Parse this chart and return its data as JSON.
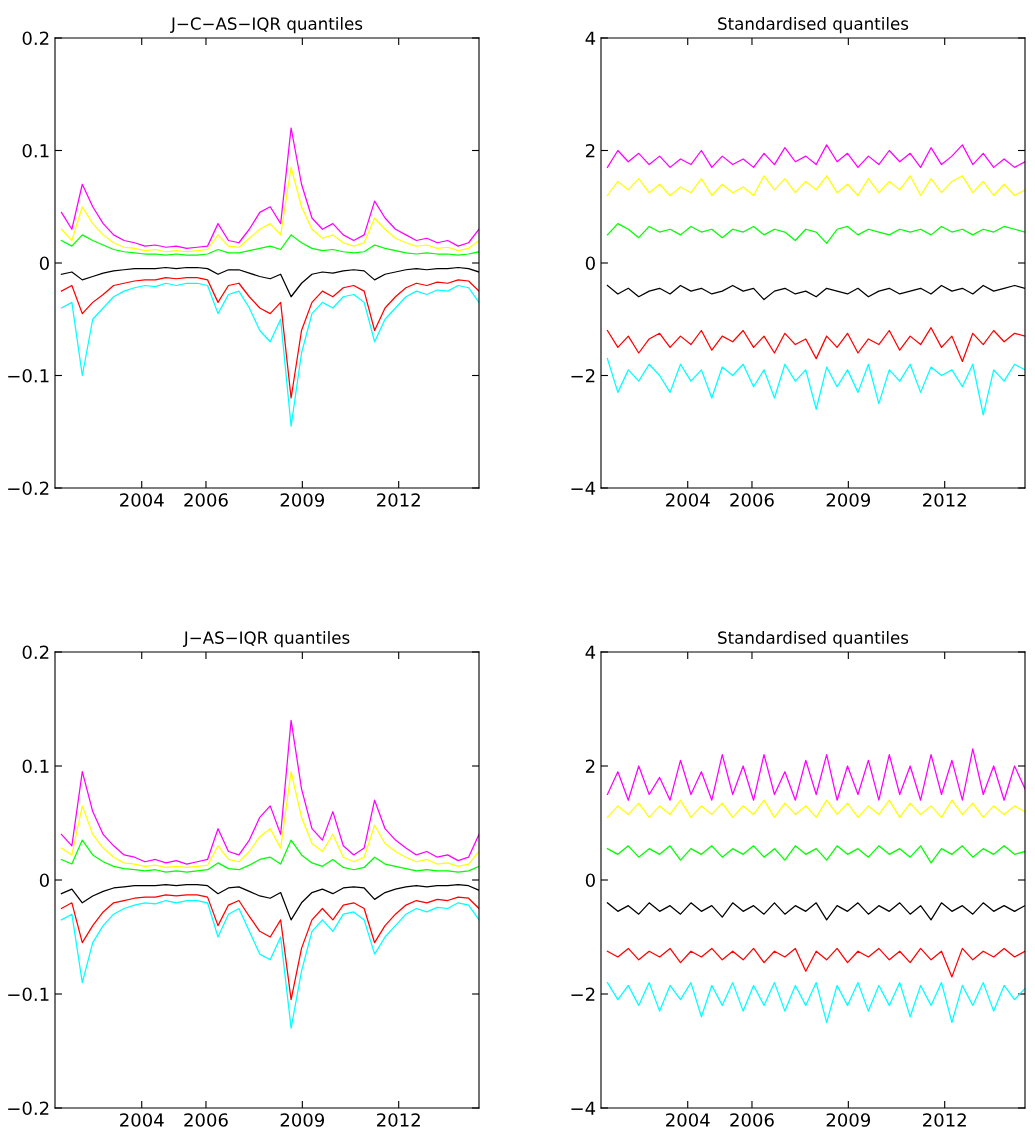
{
  "chart_data": [
    {
      "type": "line",
      "title": "J−C−AS−IQR quantiles",
      "x": [
        2001.5,
        2001.825,
        2002.15,
        2002.475,
        2002.8,
        2003.125,
        2003.45,
        2003.775,
        2004.1,
        2004.425,
        2004.75,
        2005.075,
        2005.4,
        2005.725,
        2006.05,
        2006.375,
        2006.7,
        2007.025,
        2007.35,
        2007.675,
        2008.0,
        2008.325,
        2008.65,
        2008.975,
        2009.3,
        2009.625,
        2009.95,
        2010.275,
        2010.6,
        2010.925,
        2011.25,
        2011.575,
        2011.9,
        2012.225,
        2012.55,
        2012.875,
        2013.2,
        2013.525,
        2013.85,
        2014.175,
        2014.5
      ],
      "xlim": [
        2001.3,
        2014.5
      ],
      "xticks": [
        2004,
        2006,
        2009,
        2012
      ],
      "ylim": [
        -0.2,
        0.2
      ],
      "yticks": [
        {
          "value": -0.2,
          "label": "−0.2"
        },
        {
          "value": -0.1,
          "label": "−0.1"
        },
        0,
        0.1,
        0.2
      ],
      "grid": false,
      "legend": false,
      "series": [
        {
          "color": "#ff00ff",
          "values": [
            0.045,
            0.03,
            0.07,
            0.05,
            0.035,
            0.025,
            0.02,
            0.018,
            0.015,
            0.016,
            0.014,
            0.015,
            0.013,
            0.014,
            0.015,
            0.035,
            0.02,
            0.018,
            0.03,
            0.045,
            0.05,
            0.035,
            0.12,
            0.07,
            0.04,
            0.03,
            0.035,
            0.025,
            0.02,
            0.025,
            0.055,
            0.04,
            0.03,
            0.025,
            0.02,
            0.022,
            0.018,
            0.02,
            0.015,
            0.018,
            0.03
          ]
        },
        {
          "color": "#ffff00",
          "values": [
            0.03,
            0.02,
            0.05,
            0.035,
            0.025,
            0.018,
            0.014,
            0.013,
            0.011,
            0.012,
            0.01,
            0.011,
            0.01,
            0.011,
            0.012,
            0.025,
            0.015,
            0.014,
            0.022,
            0.03,
            0.035,
            0.025,
            0.085,
            0.05,
            0.03,
            0.022,
            0.025,
            0.018,
            0.015,
            0.018,
            0.04,
            0.03,
            0.022,
            0.018,
            0.015,
            0.016,
            0.013,
            0.014,
            0.011,
            0.013,
            0.02
          ]
        },
        {
          "color": "#00ff00",
          "values": [
            0.02,
            0.015,
            0.025,
            0.02,
            0.016,
            0.012,
            0.01,
            0.009,
            0.008,
            0.008,
            0.007,
            0.008,
            0.007,
            0.007,
            0.008,
            0.012,
            0.009,
            0.009,
            0.011,
            0.013,
            0.015,
            0.012,
            0.025,
            0.018,
            0.013,
            0.011,
            0.012,
            0.01,
            0.009,
            0.01,
            0.016,
            0.013,
            0.011,
            0.009,
            0.008,
            0.009,
            0.008,
            0.008,
            0.007,
            0.008,
            0.01
          ]
        },
        {
          "color": "#000000",
          "values": [
            -0.01,
            -0.008,
            -0.015,
            -0.012,
            -0.009,
            -0.007,
            -0.006,
            -0.005,
            -0.005,
            -0.005,
            -0.004,
            -0.005,
            -0.004,
            -0.004,
            -0.005,
            -0.01,
            -0.006,
            -0.006,
            -0.009,
            -0.012,
            -0.014,
            -0.01,
            -0.03,
            -0.018,
            -0.01,
            -0.008,
            -0.009,
            -0.007,
            -0.006,
            -0.007,
            -0.015,
            -0.01,
            -0.008,
            -0.006,
            -0.005,
            -0.006,
            -0.005,
            -0.005,
            -0.004,
            -0.005,
            -0.008
          ]
        },
        {
          "color": "#ff0000",
          "values": [
            -0.025,
            -0.02,
            -0.045,
            -0.035,
            -0.028,
            -0.02,
            -0.018,
            -0.016,
            -0.015,
            -0.015,
            -0.013,
            -0.014,
            -0.013,
            -0.013,
            -0.015,
            -0.035,
            -0.02,
            -0.018,
            -0.03,
            -0.04,
            -0.045,
            -0.035,
            -0.12,
            -0.06,
            -0.035,
            -0.025,
            -0.03,
            -0.022,
            -0.02,
            -0.025,
            -0.06,
            -0.04,
            -0.03,
            -0.022,
            -0.018,
            -0.02,
            -0.017,
            -0.018,
            -0.015,
            -0.016,
            -0.025
          ]
        },
        {
          "color": "#00ffff",
          "values": [
            -0.04,
            -0.035,
            -0.1,
            -0.05,
            -0.04,
            -0.03,
            -0.025,
            -0.022,
            -0.02,
            -0.021,
            -0.018,
            -0.02,
            -0.018,
            -0.018,
            -0.02,
            -0.045,
            -0.028,
            -0.025,
            -0.04,
            -0.06,
            -0.07,
            -0.05,
            -0.145,
            -0.08,
            -0.045,
            -0.035,
            -0.04,
            -0.03,
            -0.028,
            -0.035,
            -0.07,
            -0.05,
            -0.04,
            -0.03,
            -0.025,
            -0.028,
            -0.024,
            -0.025,
            -0.02,
            -0.022,
            -0.035
          ]
        }
      ]
    },
    {
      "type": "line",
      "title": "Standardised quantiles",
      "x": [
        2001.5,
        2001.825,
        2002.15,
        2002.475,
        2002.8,
        2003.125,
        2003.45,
        2003.775,
        2004.1,
        2004.425,
        2004.75,
        2005.075,
        2005.4,
        2005.725,
        2006.05,
        2006.375,
        2006.7,
        2007.025,
        2007.35,
        2007.675,
        2008.0,
        2008.325,
        2008.65,
        2008.975,
        2009.3,
        2009.625,
        2009.95,
        2010.275,
        2010.6,
        2010.925,
        2011.25,
        2011.575,
        2011.9,
        2012.225,
        2012.55,
        2012.875,
        2013.2,
        2013.525,
        2013.85,
        2014.175,
        2014.5
      ],
      "xlim": [
        2001.3,
        2014.5
      ],
      "xticks": [
        2004,
        2006,
        2009,
        2012
      ],
      "ylim": [
        -4,
        4
      ],
      "yticks": [
        {
          "value": -4,
          "label": "−4"
        },
        {
          "value": -2,
          "label": "−2"
        },
        0,
        2,
        4
      ],
      "grid": false,
      "legend": false,
      "series": [
        {
          "color": "#ff00ff",
          "values": [
            1.7,
            2.0,
            1.8,
            1.95,
            1.75,
            1.9,
            1.7,
            1.85,
            1.75,
            2.0,
            1.7,
            1.9,
            1.75,
            1.85,
            1.7,
            1.95,
            1.75,
            2.05,
            1.8,
            1.9,
            1.75,
            2.1,
            1.8,
            1.95,
            1.7,
            1.9,
            1.75,
            2.0,
            1.8,
            1.95,
            1.7,
            2.05,
            1.75,
            1.9,
            2.1,
            1.75,
            1.95,
            1.7,
            1.85,
            1.7,
            1.8
          ]
        },
        {
          "color": "#ffff00",
          "values": [
            1.2,
            1.45,
            1.3,
            1.5,
            1.25,
            1.4,
            1.2,
            1.35,
            1.25,
            1.5,
            1.2,
            1.4,
            1.25,
            1.35,
            1.2,
            1.55,
            1.3,
            1.5,
            1.25,
            1.45,
            1.3,
            1.55,
            1.25,
            1.4,
            1.2,
            1.5,
            1.25,
            1.45,
            1.3,
            1.55,
            1.2,
            1.5,
            1.25,
            1.45,
            1.55,
            1.25,
            1.45,
            1.2,
            1.4,
            1.2,
            1.3
          ]
        },
        {
          "color": "#00ff00",
          "values": [
            0.5,
            0.7,
            0.6,
            0.45,
            0.65,
            0.55,
            0.6,
            0.5,
            0.65,
            0.55,
            0.6,
            0.45,
            0.6,
            0.55,
            0.65,
            0.5,
            0.6,
            0.55,
            0.4,
            0.6,
            0.55,
            0.35,
            0.6,
            0.65,
            0.5,
            0.6,
            0.55,
            0.5,
            0.6,
            0.55,
            0.6,
            0.5,
            0.65,
            0.55,
            0.6,
            0.5,
            0.6,
            0.55,
            0.65,
            0.6,
            0.55
          ]
        },
        {
          "color": "#000000",
          "values": [
            -0.4,
            -0.55,
            -0.45,
            -0.6,
            -0.5,
            -0.45,
            -0.55,
            -0.4,
            -0.5,
            -0.45,
            -0.55,
            -0.5,
            -0.4,
            -0.5,
            -0.45,
            -0.65,
            -0.5,
            -0.45,
            -0.55,
            -0.5,
            -0.6,
            -0.45,
            -0.5,
            -0.55,
            -0.45,
            -0.6,
            -0.5,
            -0.45,
            -0.55,
            -0.5,
            -0.45,
            -0.55,
            -0.4,
            -0.5,
            -0.45,
            -0.55,
            -0.4,
            -0.5,
            -0.45,
            -0.4,
            -0.45
          ]
        },
        {
          "color": "#ff0000",
          "values": [
            -1.2,
            -1.5,
            -1.3,
            -1.6,
            -1.35,
            -1.25,
            -1.5,
            -1.3,
            -1.45,
            -1.2,
            -1.55,
            -1.3,
            -1.4,
            -1.2,
            -1.5,
            -1.3,
            -1.6,
            -1.25,
            -1.45,
            -1.35,
            -1.7,
            -1.3,
            -1.5,
            -1.25,
            -1.6,
            -1.35,
            -1.45,
            -1.2,
            -1.55,
            -1.3,
            -1.45,
            -1.15,
            -1.5,
            -1.3,
            -1.75,
            -1.25,
            -1.45,
            -1.2,
            -1.4,
            -1.25,
            -1.3
          ]
        },
        {
          "color": "#00ffff",
          "values": [
            -1.7,
            -2.3,
            -1.9,
            -2.1,
            -1.8,
            -2.0,
            -2.3,
            -1.8,
            -2.1,
            -1.9,
            -2.4,
            -1.85,
            -2.0,
            -1.8,
            -2.2,
            -1.9,
            -2.4,
            -1.8,
            -2.1,
            -1.9,
            -2.6,
            -1.85,
            -2.2,
            -1.9,
            -2.3,
            -1.8,
            -2.5,
            -1.9,
            -2.1,
            -1.8,
            -2.3,
            -1.85,
            -2.0,
            -1.9,
            -2.2,
            -1.8,
            -2.7,
            -1.9,
            -2.1,
            -1.8,
            -1.9
          ]
        }
      ]
    },
    {
      "type": "line",
      "title": "J−AS−IQR quantiles",
      "x": [
        2001.5,
        2001.825,
        2002.15,
        2002.475,
        2002.8,
        2003.125,
        2003.45,
        2003.775,
        2004.1,
        2004.425,
        2004.75,
        2005.075,
        2005.4,
        2005.725,
        2006.05,
        2006.375,
        2006.7,
        2007.025,
        2007.35,
        2007.675,
        2008.0,
        2008.325,
        2008.65,
        2008.975,
        2009.3,
        2009.625,
        2009.95,
        2010.275,
        2010.6,
        2010.925,
        2011.25,
        2011.575,
        2011.9,
        2012.225,
        2012.55,
        2012.875,
        2013.2,
        2013.525,
        2013.85,
        2014.175,
        2014.5
      ],
      "xlim": [
        2001.3,
        2014.5
      ],
      "xticks": [
        2004,
        2006,
        2009,
        2012
      ],
      "ylim": [
        -0.2,
        0.2
      ],
      "yticks": [
        {
          "value": -0.2,
          "label": "−0.2"
        },
        {
          "value": -0.1,
          "label": "−0.1"
        },
        0,
        0.1,
        0.2
      ],
      "grid": false,
      "legend": false,
      "series": [
        {
          "color": "#ff00ff",
          "values": [
            0.04,
            0.03,
            0.095,
            0.06,
            0.04,
            0.03,
            0.022,
            0.02,
            0.016,
            0.018,
            0.015,
            0.017,
            0.014,
            0.016,
            0.018,
            0.045,
            0.025,
            0.022,
            0.035,
            0.055,
            0.065,
            0.04,
            0.14,
            0.08,
            0.045,
            0.035,
            0.06,
            0.03,
            0.022,
            0.028,
            0.07,
            0.045,
            0.035,
            0.028,
            0.022,
            0.025,
            0.02,
            0.022,
            0.017,
            0.02,
            0.04
          ]
        },
        {
          "color": "#ffff00",
          "values": [
            0.028,
            0.022,
            0.065,
            0.04,
            0.028,
            0.02,
            0.015,
            0.014,
            0.012,
            0.013,
            0.011,
            0.012,
            0.011,
            0.012,
            0.013,
            0.03,
            0.018,
            0.016,
            0.025,
            0.038,
            0.045,
            0.028,
            0.095,
            0.055,
            0.032,
            0.025,
            0.04,
            0.02,
            0.016,
            0.02,
            0.048,
            0.032,
            0.025,
            0.02,
            0.016,
            0.018,
            0.014,
            0.015,
            0.012,
            0.014,
            0.025
          ]
        },
        {
          "color": "#00ff00",
          "values": [
            0.018,
            0.014,
            0.035,
            0.022,
            0.016,
            0.012,
            0.01,
            0.009,
            0.008,
            0.009,
            0.007,
            0.008,
            0.007,
            0.008,
            0.009,
            0.015,
            0.01,
            0.009,
            0.013,
            0.018,
            0.02,
            0.014,
            0.035,
            0.022,
            0.015,
            0.012,
            0.018,
            0.011,
            0.009,
            0.011,
            0.02,
            0.014,
            0.012,
            0.01,
            0.008,
            0.009,
            0.008,
            0.008,
            0.007,
            0.008,
            0.012
          ]
        },
        {
          "color": "#000000",
          "values": [
            -0.012,
            -0.008,
            -0.02,
            -0.014,
            -0.01,
            -0.007,
            -0.006,
            -0.005,
            -0.005,
            -0.005,
            -0.004,
            -0.005,
            -0.004,
            -0.004,
            -0.005,
            -0.012,
            -0.007,
            -0.006,
            -0.01,
            -0.014,
            -0.016,
            -0.011,
            -0.035,
            -0.02,
            -0.011,
            -0.008,
            -0.012,
            -0.007,
            -0.006,
            -0.007,
            -0.017,
            -0.011,
            -0.008,
            -0.006,
            -0.005,
            -0.006,
            -0.005,
            -0.005,
            -0.004,
            -0.005,
            -0.009
          ]
        },
        {
          "color": "#ff0000",
          "values": [
            -0.025,
            -0.02,
            -0.055,
            -0.04,
            -0.028,
            -0.02,
            -0.018,
            -0.016,
            -0.015,
            -0.015,
            -0.013,
            -0.014,
            -0.013,
            -0.013,
            -0.015,
            -0.04,
            -0.022,
            -0.018,
            -0.032,
            -0.045,
            -0.05,
            -0.035,
            -0.105,
            -0.06,
            -0.035,
            -0.025,
            -0.035,
            -0.022,
            -0.02,
            -0.025,
            -0.055,
            -0.04,
            -0.03,
            -0.022,
            -0.018,
            -0.02,
            -0.017,
            -0.018,
            -0.015,
            -0.016,
            -0.025
          ]
        },
        {
          "color": "#00ffff",
          "values": [
            -0.035,
            -0.03,
            -0.09,
            -0.055,
            -0.04,
            -0.03,
            -0.025,
            -0.022,
            -0.02,
            -0.021,
            -0.018,
            -0.02,
            -0.018,
            -0.018,
            -0.02,
            -0.05,
            -0.03,
            -0.025,
            -0.045,
            -0.065,
            -0.07,
            -0.05,
            -0.13,
            -0.08,
            -0.045,
            -0.035,
            -0.045,
            -0.03,
            -0.028,
            -0.035,
            -0.065,
            -0.05,
            -0.04,
            -0.03,
            -0.025,
            -0.028,
            -0.024,
            -0.025,
            -0.02,
            -0.022,
            -0.035
          ]
        }
      ]
    },
    {
      "type": "line",
      "title": "Standardised quantiles",
      "x": [
        2001.5,
        2001.825,
        2002.15,
        2002.475,
        2002.8,
        2003.125,
        2003.45,
        2003.775,
        2004.1,
        2004.425,
        2004.75,
        2005.075,
        2005.4,
        2005.725,
        2006.05,
        2006.375,
        2006.7,
        2007.025,
        2007.35,
        2007.675,
        2008.0,
        2008.325,
        2008.65,
        2008.975,
        2009.3,
        2009.625,
        2009.95,
        2010.275,
        2010.6,
        2010.925,
        2011.25,
        2011.575,
        2011.9,
        2012.225,
        2012.55,
        2012.875,
        2013.2,
        2013.525,
        2013.85,
        2014.175,
        2014.5
      ],
      "xlim": [
        2001.3,
        2014.5
      ],
      "xticks": [
        2004,
        2006,
        2009,
        2012
      ],
      "ylim": [
        -4,
        4
      ],
      "yticks": [
        {
          "value": -4,
          "label": "−4"
        },
        {
          "value": -2,
          "label": "−2"
        },
        0,
        2,
        4
      ],
      "grid": false,
      "legend": false,
      "series": [
        {
          "color": "#ff00ff",
          "values": [
            1.5,
            1.9,
            1.4,
            2.0,
            1.5,
            1.8,
            1.4,
            2.1,
            1.5,
            1.9,
            1.4,
            2.2,
            1.5,
            2.0,
            1.4,
            2.2,
            1.5,
            1.9,
            1.4,
            2.1,
            1.5,
            2.2,
            1.4,
            2.0,
            1.5,
            2.1,
            1.4,
            2.2,
            1.5,
            2.0,
            1.4,
            2.2,
            1.5,
            2.1,
            1.4,
            2.3,
            1.5,
            2.0,
            1.4,
            2.0,
            1.6
          ]
        },
        {
          "color": "#ffff00",
          "values": [
            1.1,
            1.3,
            1.15,
            1.35,
            1.1,
            1.3,
            1.15,
            1.4,
            1.1,
            1.3,
            1.15,
            1.35,
            1.1,
            1.3,
            1.15,
            1.4,
            1.1,
            1.35,
            1.15,
            1.3,
            1.1,
            1.4,
            1.15,
            1.35,
            1.1,
            1.3,
            1.15,
            1.4,
            1.1,
            1.35,
            1.15,
            1.3,
            1.1,
            1.4,
            1.15,
            1.35,
            1.1,
            1.3,
            1.15,
            1.3,
            1.2
          ]
        },
        {
          "color": "#00ff00",
          "values": [
            0.55,
            0.45,
            0.6,
            0.4,
            0.55,
            0.45,
            0.6,
            0.35,
            0.55,
            0.45,
            0.6,
            0.4,
            0.55,
            0.45,
            0.6,
            0.4,
            0.55,
            0.35,
            0.6,
            0.45,
            0.55,
            0.35,
            0.6,
            0.45,
            0.55,
            0.4,
            0.6,
            0.45,
            0.55,
            0.4,
            0.6,
            0.3,
            0.55,
            0.45,
            0.6,
            0.4,
            0.55,
            0.45,
            0.6,
            0.45,
            0.5
          ]
        },
        {
          "color": "#000000",
          "values": [
            -0.4,
            -0.55,
            -0.45,
            -0.6,
            -0.4,
            -0.55,
            -0.45,
            -0.6,
            -0.4,
            -0.55,
            -0.45,
            -0.65,
            -0.4,
            -0.55,
            -0.45,
            -0.6,
            -0.4,
            -0.6,
            -0.45,
            -0.55,
            -0.4,
            -0.7,
            -0.45,
            -0.55,
            -0.4,
            -0.6,
            -0.45,
            -0.55,
            -0.4,
            -0.6,
            -0.45,
            -0.7,
            -0.4,
            -0.55,
            -0.45,
            -0.6,
            -0.4,
            -0.55,
            -0.45,
            -0.55,
            -0.45
          ]
        },
        {
          "color": "#ff0000",
          "values": [
            -1.25,
            -1.35,
            -1.2,
            -1.4,
            -1.25,
            -1.35,
            -1.2,
            -1.45,
            -1.25,
            -1.35,
            -1.2,
            -1.4,
            -1.25,
            -1.4,
            -1.2,
            -1.45,
            -1.25,
            -1.35,
            -1.2,
            -1.6,
            -1.25,
            -1.4,
            -1.2,
            -1.45,
            -1.25,
            -1.35,
            -1.2,
            -1.4,
            -1.25,
            -1.45,
            -1.2,
            -1.4,
            -1.25,
            -1.7,
            -1.2,
            -1.4,
            -1.25,
            -1.35,
            -1.2,
            -1.35,
            -1.25
          ]
        },
        {
          "color": "#00ffff",
          "values": [
            -1.8,
            -2.1,
            -1.85,
            -2.2,
            -1.8,
            -2.3,
            -1.85,
            -2.1,
            -1.8,
            -2.4,
            -1.85,
            -2.2,
            -1.8,
            -2.3,
            -1.85,
            -2.2,
            -1.8,
            -2.3,
            -1.85,
            -2.2,
            -1.8,
            -2.5,
            -1.85,
            -2.2,
            -1.8,
            -2.3,
            -1.85,
            -2.2,
            -1.8,
            -2.4,
            -1.85,
            -2.2,
            -1.8,
            -2.5,
            -1.85,
            -2.2,
            -1.8,
            -2.3,
            -1.85,
            -2.1,
            -1.9
          ]
        }
      ]
    }
  ]
}
